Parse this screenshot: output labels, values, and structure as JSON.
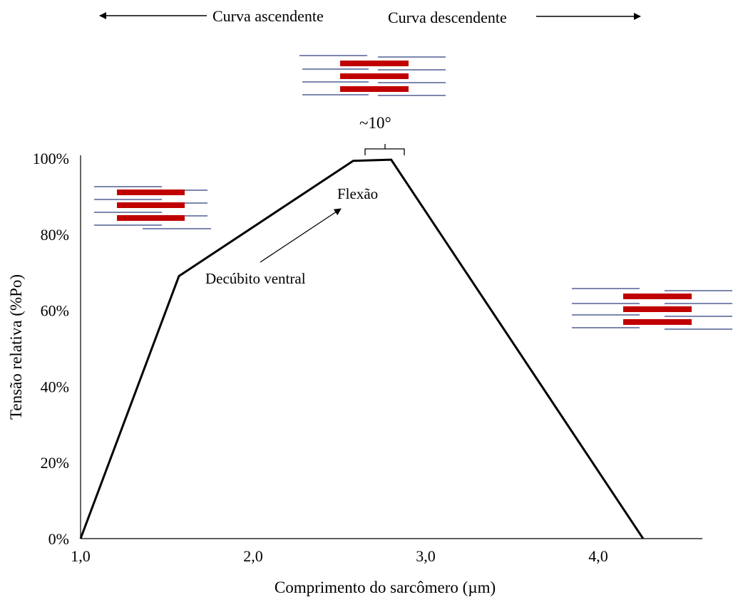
{
  "chart_data": {
    "type": "line",
    "title": "",
    "xlabel": "Comprimento do sarcômero (µm)",
    "ylabel": "Tensão relativa (%Po)",
    "xlim": [
      1.0,
      4.5
    ],
    "ylim": [
      0,
      100
    ],
    "x_ticks": [
      1.0,
      2.0,
      3.0,
      4.0
    ],
    "x_tick_labels": [
      "1,0",
      "2,0",
      "3,0",
      "4,0"
    ],
    "y_ticks": [
      0,
      20,
      40,
      60,
      80,
      100
    ],
    "y_tick_labels": [
      "0%",
      "20%",
      "40%",
      "60%",
      "80%",
      "100%"
    ],
    "grid": false,
    "series": [
      {
        "x": [
          1.0,
          1.57,
          2.58,
          2.8,
          4.26
        ],
        "y": [
          0,
          69,
          99.3,
          99.6,
          0
        ],
        "color": "#000000"
      }
    ],
    "annotations": {
      "ascending": "Curva ascendente",
      "descending": "Curva descendente",
      "angle": "~10°",
      "flexion": "Flexão",
      "prone": "Decúbito ventral"
    },
    "colors": {
      "myosin": "#c00000",
      "actin": "#2f3e7f",
      "line": "#000000"
    }
  }
}
